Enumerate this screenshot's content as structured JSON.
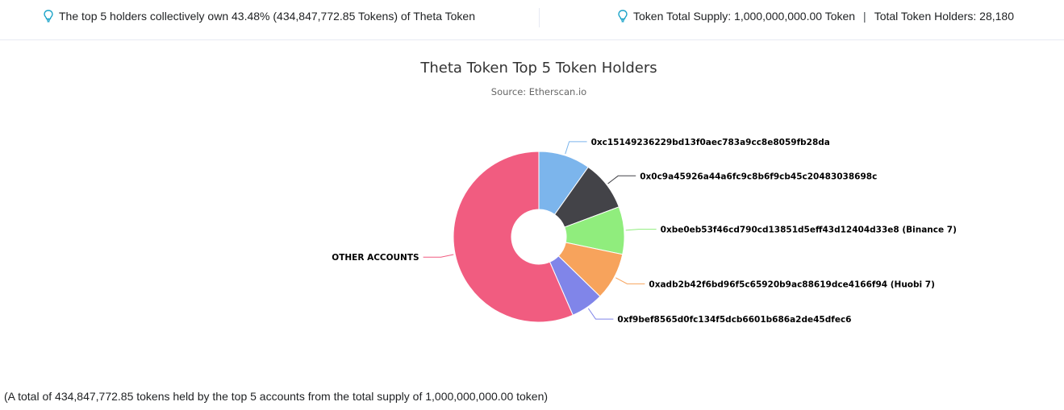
{
  "header": {
    "top_holders_text": "The top 5 holders collectively own 43.48% (434,847,772.85 Tokens) of Theta Token",
    "supply_text": "Token Total Supply: 1,000,000,000.00 Token",
    "separator": "|",
    "holders_text": "Total Token Holders: 28,180",
    "bulb_icon": "lightbulb-icon",
    "bulb_color": "#1aa3c8"
  },
  "chart_data": {
    "type": "pie",
    "donut": true,
    "title": "Theta Token Top 5 Token Holders",
    "subtitle": "Source: Etherscan.io",
    "slices": [
      {
        "label": "0xc15149236229bd13f0aec783a9cc8e8059fb28da",
        "value": 9.8,
        "color": "#7cb5ec"
      },
      {
        "label": "0x0c9a45926a44a6fc9c8b6f9cb45c20483038698c",
        "value": 9.5,
        "color": "#434348"
      },
      {
        "label": "0xbe0eb53f46cd790cd13851d5eff43d12404d33e8 (Binance 7)",
        "value": 9.0,
        "color": "#90ed7d"
      },
      {
        "label": "0xadb2b42f6bd96f5c65920b9ac88619dce4166f94 (Huobi 7)",
        "value": 9.0,
        "color": "#f7a35c"
      },
      {
        "label": "0xf9bef8565d0fc134f5dcb6601b686a2de45dfec6",
        "value": 6.18,
        "color": "#8085e9"
      },
      {
        "label": "OTHER ACCOUNTS",
        "value": 56.52,
        "color": "#f15c80"
      }
    ]
  },
  "footer": {
    "note": "(A total of 434,847,772.85 tokens held by the top 5 accounts from the total supply of 1,000,000,000.00 token)"
  }
}
